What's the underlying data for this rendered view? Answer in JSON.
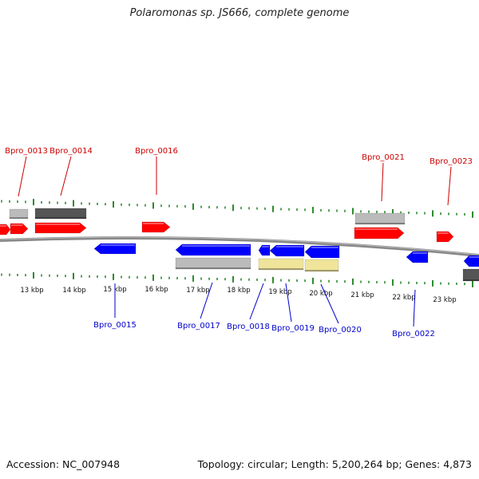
{
  "title": "Polaromonas sp. JS666, complete genome",
  "footer": {
    "accession": "Accession: NC_007948",
    "topology": "Topology: circular",
    "length": "Length: 5,200,264 bp",
    "genes": "Genes: 4,873"
  },
  "colors": {
    "forward_cds": "#ff0000",
    "reverse_cds": "#0000ff",
    "dark_feature": "#555555",
    "light_feature": "#bbbbbb",
    "yellow_feature": "#efe49a",
    "ticks": "#2e8b2e",
    "backbone": "#777777",
    "forward_label": "#cc0000",
    "reverse_label": "#0000cc"
  },
  "scale": {
    "labels": [
      "13 kbp",
      "14 kbp",
      "15 kbp",
      "16 kbp",
      "17 kbp",
      "18 kbp",
      "19 kbp",
      "20 kbp",
      "21 kbp",
      "22 kbp",
      "23 kbp"
    ]
  },
  "genes": {
    "forward": [
      {
        "label": "Bpro_0013"
      },
      {
        "label": "Bpro_0014"
      },
      {
        "label": "Bpro_0016"
      },
      {
        "label": "Bpro_0021"
      },
      {
        "label": "Bpro_0023"
      }
    ],
    "reverse": [
      {
        "label": "Bpro_0015"
      },
      {
        "label": "Bpro_0017"
      },
      {
        "label": "Bpro_0018"
      },
      {
        "label": "Bpro_0019"
      },
      {
        "label": "Bpro_0020"
      },
      {
        "label": "Bpro_0022"
      }
    ]
  }
}
